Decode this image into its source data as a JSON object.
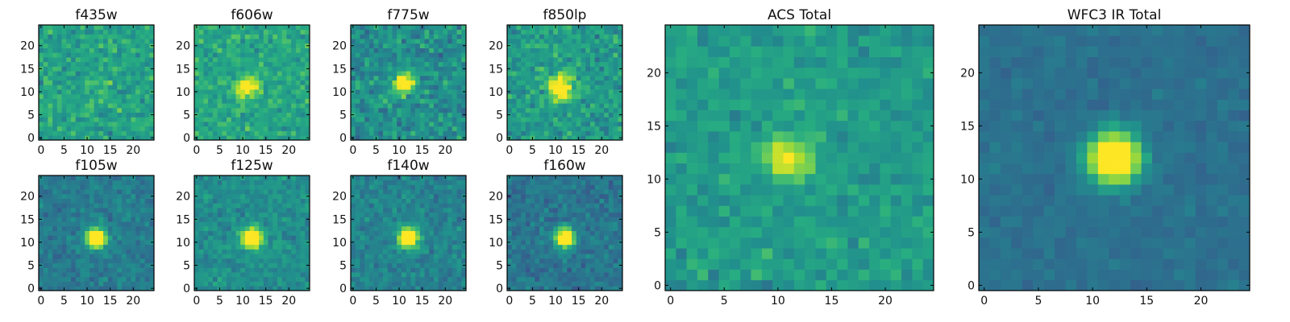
{
  "colormap": "viridis",
  "colors": {
    "colormap_low": "#440154",
    "colormap_mid": "#21918c",
    "colormap_high": "#fde725",
    "frame": "#000000",
    "background": "#ffffff"
  },
  "chart_data": [
    {
      "type": "heatmap",
      "title": "f435w",
      "size": 25,
      "xticks": [
        "0",
        "5",
        "10",
        "15",
        "20"
      ],
      "yticks": [
        "0",
        "5",
        "10",
        "15",
        "20"
      ],
      "xlim": [
        0,
        24
      ],
      "ylim": [
        0,
        24
      ],
      "source": {
        "center": [
          13,
          12
        ],
        "strength": 0.05,
        "sigma": 2.0,
        "base": 0.58,
        "noise": 0.22
      },
      "grid": false,
      "seed": 11
    },
    {
      "type": "heatmap",
      "title": "f606w",
      "size": 25,
      "xticks": [
        "0",
        "5",
        "10",
        "15",
        "20"
      ],
      "yticks": [
        "0",
        "5",
        "10",
        "15",
        "20"
      ],
      "xlim": [
        0,
        24
      ],
      "ylim": [
        0,
        24
      ],
      "source": {
        "center": [
          11,
          11
        ],
        "strength": 0.35,
        "sigma": 1.5,
        "base": 0.6,
        "noise": 0.2
      },
      "grid": false,
      "seed": 23
    },
    {
      "type": "heatmap",
      "title": "f775w",
      "size": 25,
      "xticks": [
        "0",
        "5",
        "10",
        "15",
        "20"
      ],
      "yticks": [
        "0",
        "5",
        "10",
        "15",
        "20"
      ],
      "xlim": [
        0,
        24
      ],
      "ylim": [
        0,
        24
      ],
      "source": {
        "center": [
          11,
          12
        ],
        "strength": 0.4,
        "sigma": 1.6,
        "base": 0.5,
        "noise": 0.24
      },
      "grid": false,
      "seed": 37
    },
    {
      "type": "heatmap",
      "title": "f850lp",
      "size": 25,
      "xticks": [
        "0",
        "5",
        "10",
        "15",
        "20"
      ],
      "yticks": [
        "0",
        "5",
        "10",
        "15",
        "20"
      ],
      "xlim": [
        0,
        24
      ],
      "ylim": [
        0,
        24
      ],
      "source": {
        "center": [
          11,
          11
        ],
        "strength": 0.45,
        "sigma": 1.8,
        "base": 0.55,
        "noise": 0.22
      },
      "grid": false,
      "seed": 41
    },
    {
      "type": "heatmap",
      "title": "f105w",
      "size": 25,
      "xticks": [
        "0",
        "5",
        "10",
        "15",
        "20"
      ],
      "yticks": [
        "0",
        "5",
        "10",
        "15",
        "20"
      ],
      "xlim": [
        0,
        24
      ],
      "ylim": [
        0,
        24
      ],
      "source": {
        "center": [
          12,
          11
        ],
        "strength": 0.6,
        "sigma": 1.5,
        "base": 0.42,
        "noise": 0.14
      },
      "grid": false,
      "seed": 53
    },
    {
      "type": "heatmap",
      "title": "f125w",
      "size": 25,
      "xticks": [
        "0",
        "5",
        "10",
        "15",
        "20"
      ],
      "yticks": [
        "0",
        "5",
        "10",
        "15",
        "20"
      ],
      "xlim": [
        0,
        24
      ],
      "ylim": [
        0,
        24
      ],
      "source": {
        "center": [
          12,
          11
        ],
        "strength": 0.55,
        "sigma": 1.5,
        "base": 0.5,
        "noise": 0.15
      },
      "grid": false,
      "seed": 67
    },
    {
      "type": "heatmap",
      "title": "f140w",
      "size": 25,
      "xticks": [
        "0",
        "5",
        "10",
        "15",
        "20"
      ],
      "yticks": [
        "0",
        "5",
        "10",
        "15",
        "20"
      ],
      "xlim": [
        0,
        24
      ],
      "ylim": [
        0,
        24
      ],
      "source": {
        "center": [
          12,
          11
        ],
        "strength": 0.55,
        "sigma": 1.5,
        "base": 0.45,
        "noise": 0.15
      },
      "grid": false,
      "seed": 79
    },
    {
      "type": "heatmap",
      "title": "f160w",
      "size": 25,
      "xticks": [
        "0",
        "5",
        "10",
        "15",
        "20"
      ],
      "yticks": [
        "0",
        "5",
        "10",
        "15",
        "20"
      ],
      "xlim": [
        0,
        24
      ],
      "ylim": [
        0,
        24
      ],
      "source": {
        "center": [
          12,
          11
        ],
        "strength": 0.6,
        "sigma": 1.4,
        "base": 0.4,
        "noise": 0.15
      },
      "grid": false,
      "seed": 83
    },
    {
      "type": "heatmap",
      "title": "ACS Total",
      "size": 25,
      "xticks": [
        "0",
        "5",
        "10",
        "15",
        "20"
      ],
      "yticks": [
        "0",
        "5",
        "10",
        "15",
        "20"
      ],
      "xlim": [
        0,
        24
      ],
      "ylim": [
        0,
        24
      ],
      "source": {
        "center": [
          11,
          12
        ],
        "strength": 0.35,
        "sigma": 1.3,
        "base": 0.55,
        "noise": 0.16
      },
      "grid": false,
      "seed": 97
    },
    {
      "type": "heatmap",
      "title": "WFC3 IR Total",
      "size": 25,
      "xticks": [
        "0",
        "5",
        "10",
        "15",
        "20"
      ],
      "yticks": [
        "0",
        "5",
        "10",
        "15",
        "20"
      ],
      "xlim": [
        0,
        24
      ],
      "ylim": [
        0,
        24
      ],
      "source": {
        "center": [
          12,
          12
        ],
        "strength": 0.65,
        "sigma": 1.6,
        "base": 0.38,
        "noise": 0.07
      },
      "grid": false,
      "seed": 101
    }
  ]
}
